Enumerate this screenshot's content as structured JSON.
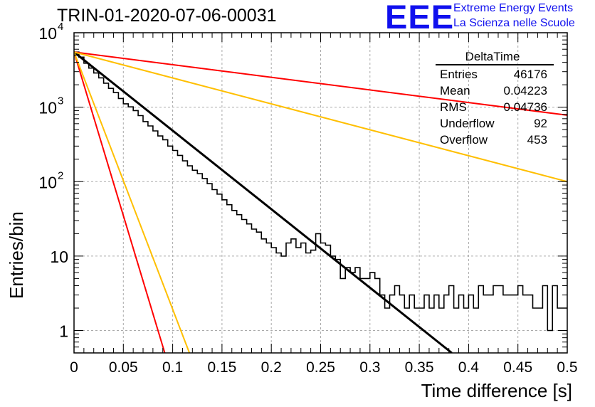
{
  "header": {
    "title": "TRIN-01-2020-07-06-00031",
    "logo_text": "EEE",
    "logo_line1": "Extreme Energy Events",
    "logo_line2": "La Scienza nelle Scuole",
    "logo_color": "#1010ee"
  },
  "stats_box": {
    "title": "DeltaTime",
    "rows": [
      {
        "label": "Entries",
        "value": "46176"
      },
      {
        "label": "Mean",
        "value": "0.04223"
      },
      {
        "label": "RMS",
        "value": "0.04736"
      },
      {
        "label": "Underflow",
        "value": "92"
      },
      {
        "label": "Overflow",
        "value": "453"
      }
    ]
  },
  "chart_data": {
    "type": "line",
    "title": "TRIN-01-2020-07-06-00031",
    "xlabel": "Time difference [s]",
    "ylabel": "Entries/bin",
    "xlim": [
      0,
      0.5
    ],
    "ylim": [
      0.5,
      10000
    ],
    "y_scale": "log",
    "grid": true,
    "x_ticks": [
      "0",
      "0.05",
      "0.1",
      "0.15",
      "0.2",
      "0.25",
      "0.3",
      "0.35",
      "0.4",
      "0.45",
      "0.5"
    ],
    "y_ticks": [
      {
        "value": 1,
        "label": "1",
        "exp": ""
      },
      {
        "value": 10,
        "label": "10",
        "exp": ""
      },
      {
        "value": 100,
        "label": "10",
        "exp": "2"
      },
      {
        "value": 1000,
        "label": "10",
        "exp": "3"
      },
      {
        "value": 10000,
        "label": "10",
        "exp": "4"
      }
    ],
    "histogram": {
      "name": "DeltaTime",
      "color": "#000000",
      "bin_width": 0.005,
      "values": [
        5500,
        4700,
        3900,
        3350,
        2880,
        2480,
        2100,
        1790,
        1570,
        1310,
        1110,
        1010,
        900,
        770,
        640,
        560,
        480,
        410,
        365,
        300,
        262,
        225,
        190,
        163,
        142,
        128,
        110,
        94,
        78,
        68,
        57,
        49,
        41,
        36,
        31,
        27,
        23,
        21,
        17,
        15,
        13,
        11,
        10,
        15,
        17,
        13,
        15,
        11,
        12,
        20,
        15,
        14,
        10,
        9,
        5,
        7,
        6,
        7,
        5,
        5,
        6,
        5,
        3,
        2,
        3,
        4,
        3,
        2,
        3,
        2,
        2,
        3,
        2,
        3,
        2,
        3,
        4,
        2,
        3,
        2,
        3,
        2,
        4,
        3,
        3,
        4,
        4,
        3,
        3,
        3,
        4,
        3,
        3,
        2,
        2,
        4,
        1,
        4,
        2,
        2
      ]
    },
    "fit_lines": [
      {
        "color": "#000000",
        "width": 3,
        "x": [
          0,
          0.383
        ],
        "y": [
          5500,
          0.5
        ]
      },
      {
        "color": "#ff0000",
        "width": 2,
        "x": [
          0,
          0.5
        ],
        "y": [
          5500,
          780
        ]
      },
      {
        "color": "#ffbf00",
        "width": 2,
        "x": [
          0,
          0.5
        ],
        "y": [
          5500,
          100
        ]
      },
      {
        "color": "#ff0000",
        "width": 2,
        "x": [
          0,
          0.092
        ],
        "y": [
          5500,
          0.5
        ]
      },
      {
        "color": "#ffbf00",
        "width": 2,
        "x": [
          0,
          0.117
        ],
        "y": [
          5500,
          0.5
        ]
      }
    ]
  }
}
